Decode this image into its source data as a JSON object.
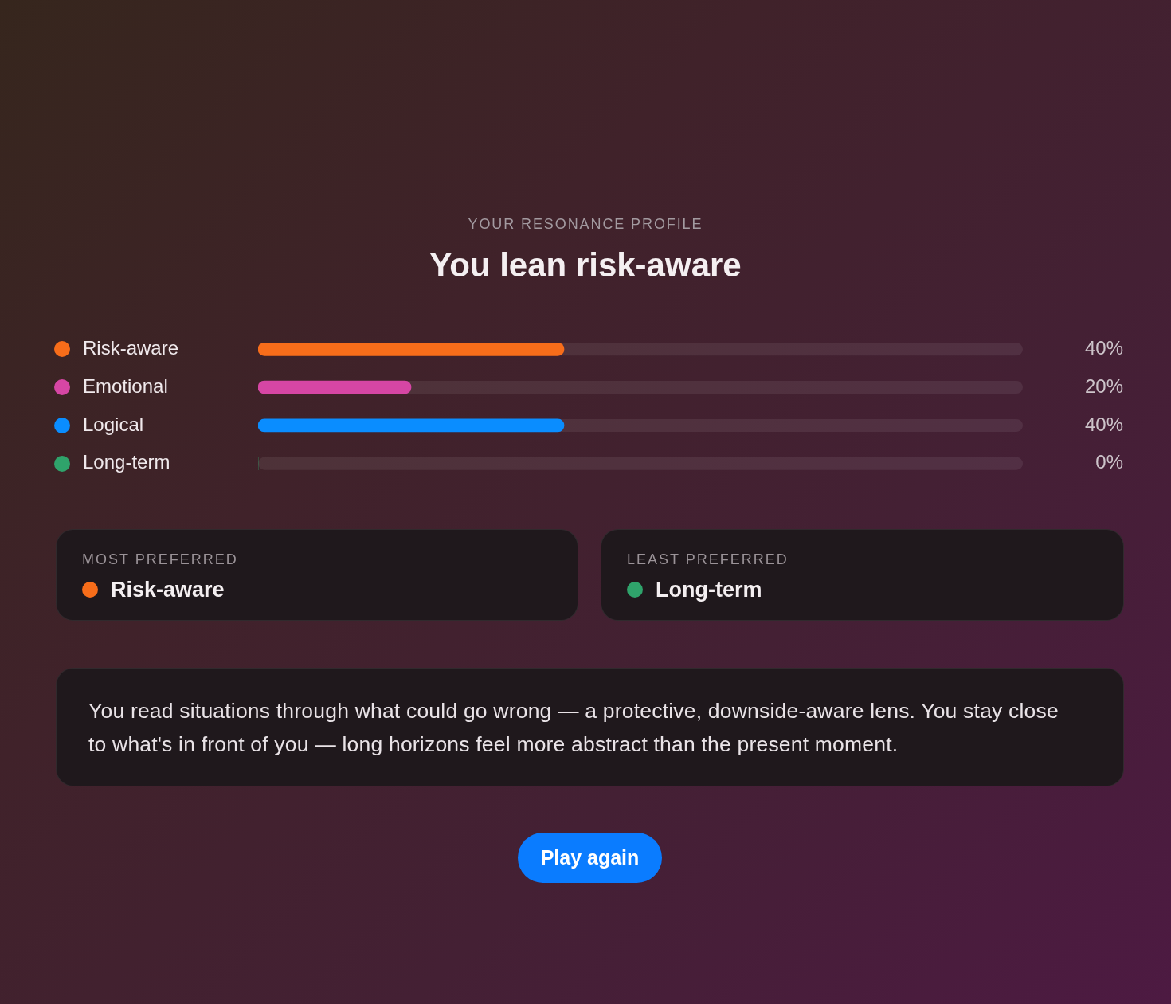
{
  "chart_data": {
    "type": "bar",
    "orientation": "horizontal",
    "subtitle": "YOUR RESONANCE PROFILE",
    "title": "You lean risk-aware",
    "categories": [
      "Risk-aware",
      "Emotional",
      "Logical",
      "Long-term"
    ],
    "values": [
      40,
      20,
      40,
      0
    ],
    "colors": [
      "#f76d1a",
      "#d646a4",
      "#0a8dff",
      "#2fa36b"
    ],
    "value_labels": [
      "40%",
      "20%",
      "40%",
      "0%"
    ],
    "xlim": [
      0,
      100
    ],
    "tick_labels": "y",
    "annotations": [
      "MOST PREFERRED",
      "Risk-aware",
      "LEAST PREFERRED",
      "Long-term",
      "You read situations through what could go wrong — a protective, downside-aware lens. You stay close to what's in front of you — long horizons feel more abstract than the present moment.",
      "Play again"
    ]
  }
}
